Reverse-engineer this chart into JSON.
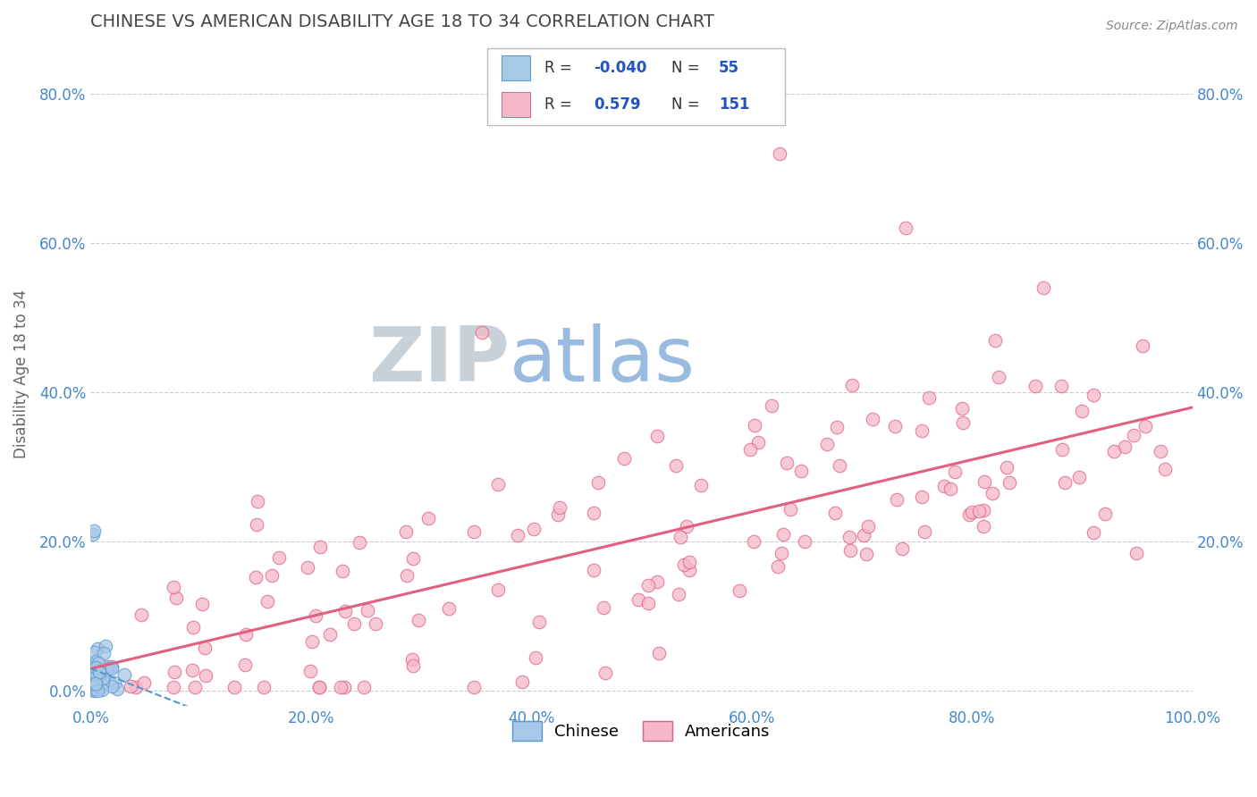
{
  "title": "CHINESE VS AMERICAN DISABILITY AGE 18 TO 34 CORRELATION CHART",
  "source_text": "Source: ZipAtlas.com",
  "ylabel": "Disability Age 18 to 34",
  "xlim": [
    0.0,
    1.0
  ],
  "ylim": [
    -0.02,
    0.87
  ],
  "x_tick_vals": [
    0.0,
    0.2,
    0.4,
    0.6,
    0.8,
    1.0
  ],
  "x_tick_labels": [
    "0.0%",
    "20.0%",
    "40.0%",
    "60.0%",
    "80.0%",
    "100.0%"
  ],
  "y_tick_vals": [
    0.0,
    0.2,
    0.4,
    0.6,
    0.8
  ],
  "y_tick_labels": [
    "0.0%",
    "20.0%",
    "40.0%",
    "60.0%",
    "80.0%"
  ],
  "right_y_tick_vals": [
    0.2,
    0.4,
    0.6,
    0.8
  ],
  "right_y_tick_labels": [
    "20.0%",
    "40.0%",
    "60.0%",
    "80.0%"
  ],
  "chinese_color": "#a8c8e8",
  "chinese_edge_color": "#5599cc",
  "american_color": "#f5b8c8",
  "american_edge_color": "#e06080",
  "chinese_line_color": "#5599cc",
  "american_line_color": "#e06080",
  "tick_label_color": "#4488cc",
  "grid_color": "#cccccc",
  "axis_label_color": "#666666",
  "title_color": "#444444",
  "watermark_zip_color": "#c8d0d8",
  "watermark_atlas_color": "#99bbe0",
  "legend_r_chinese": "-0.040",
  "legend_n_chinese": "55",
  "legend_r_american": "0.579",
  "legend_n_american": "151",
  "chinese_seed": 7,
  "american_seed": 99
}
